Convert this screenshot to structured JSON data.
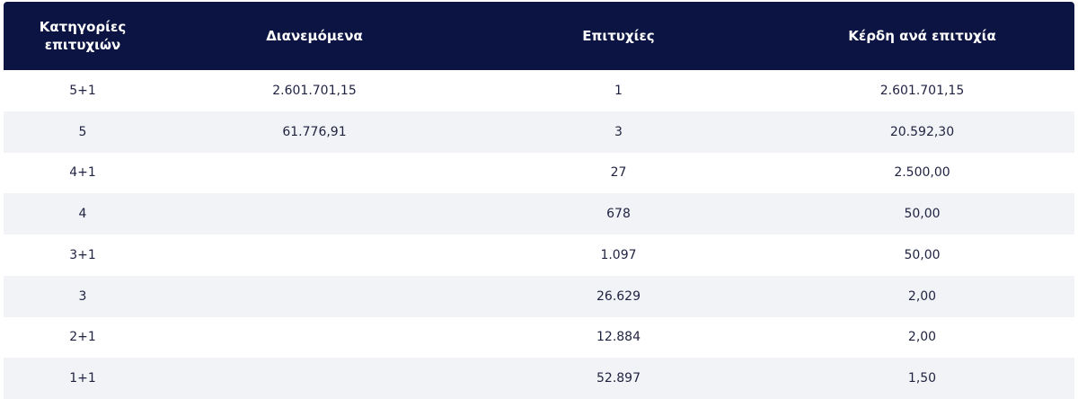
{
  "table": {
    "headers": [
      "Κατηγορίες επιτυχιών",
      "Διανεμόμενα",
      "Επιτυχίες",
      "Κέρδη ανά επιτυχία"
    ],
    "rows": [
      [
        "5+1",
        "2.601.701,15",
        "1",
        "2.601.701,15"
      ],
      [
        "5",
        "61.776,91",
        "3",
        "20.592,30"
      ],
      [
        "4+1",
        "",
        "27",
        "2.500,00"
      ],
      [
        "4",
        "",
        "678",
        "50,00"
      ],
      [
        "3+1",
        "",
        "1.097",
        "50,00"
      ],
      [
        "3",
        "",
        "26.629",
        "2,00"
      ],
      [
        "2+1",
        "",
        "12.884",
        "2,00"
      ],
      [
        "1+1",
        "",
        "52.897",
        "1,50"
      ]
    ]
  }
}
